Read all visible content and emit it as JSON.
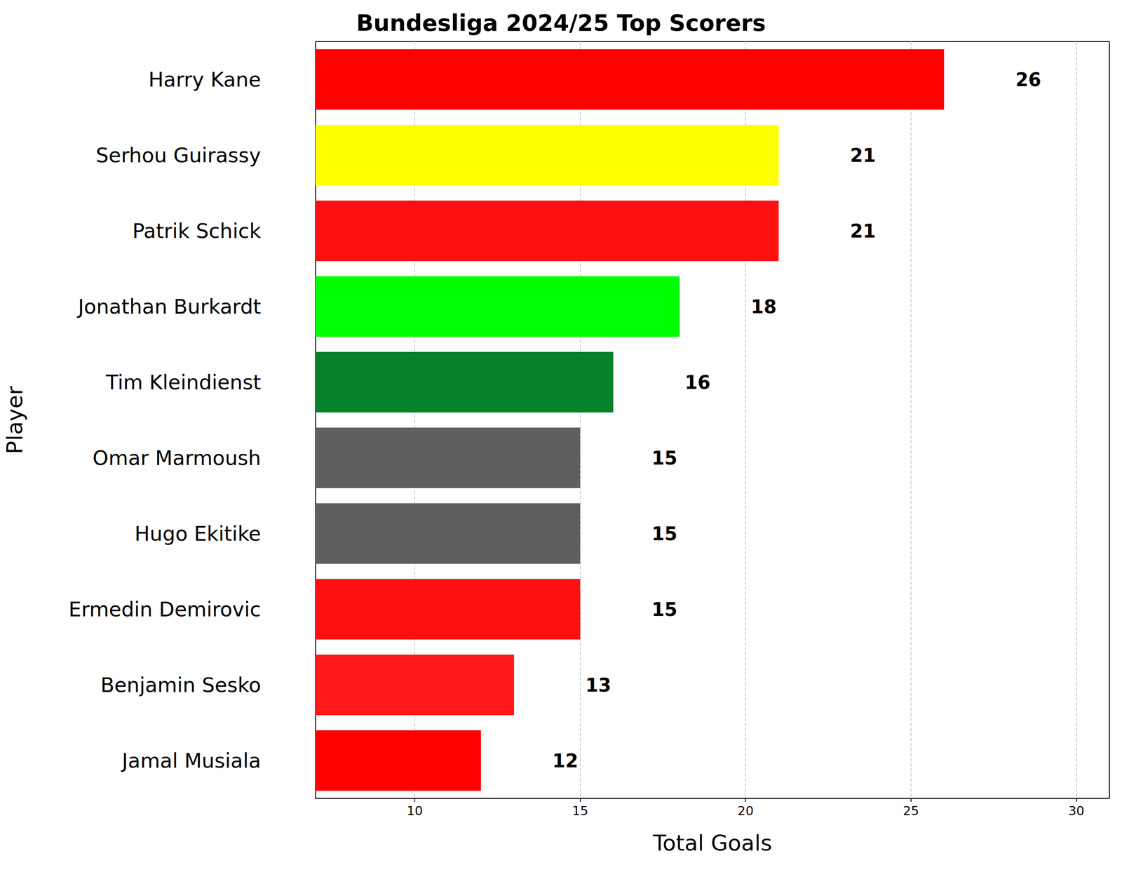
{
  "chart_data": {
    "type": "bar",
    "orientation": "horizontal",
    "title": "Bundesliga 2024/25 Top Scorers",
    "x_label": "Total Goals",
    "y_label": "Player",
    "categories": [
      "Harry Kane",
      "Serhou Guirassy",
      "Patrik Schick",
      "Jonathan Burkardt",
      "Tim Kleindienst",
      "Omar Marmoush",
      "Hugo Ekitike",
      "Ermedin Demirovic",
      "Benjamin Sesko",
      "Jamal Musiala"
    ],
    "values": [
      26,
      21,
      21,
      18,
      16,
      15,
      15,
      15,
      13,
      12
    ],
    "colors": [
      "#ff0000",
      "#ffff00",
      "#ff1010",
      "#00ff00",
      "#06822b",
      "#5f5f5f",
      "#5f5f5f",
      "#ff1010",
      "#ff1a1a",
      "#ff0000"
    ],
    "xlim": [
      7,
      31
    ],
    "xticks": [
      10,
      15,
      20,
      25,
      30
    ],
    "grid": true,
    "data_labels": true
  }
}
